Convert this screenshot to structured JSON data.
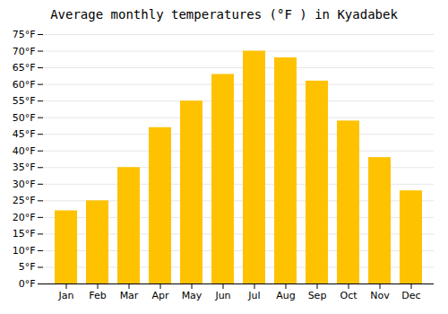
{
  "chart_data": {
    "type": "bar",
    "title": "Average monthly temperatures (°F ) in Kyadabek",
    "categories": [
      "Jan",
      "Feb",
      "Mar",
      "Apr",
      "May",
      "Jun",
      "Jul",
      "Aug",
      "Sep",
      "Oct",
      "Nov",
      "Dec"
    ],
    "values": [
      22,
      25,
      35,
      47,
      55,
      63,
      70,
      68,
      61,
      49,
      38,
      28
    ],
    "color": "#FFC200",
    "ylim": [
      0,
      75
    ],
    "yticks": [
      {
        "value": 0,
        "label": "0°F"
      },
      {
        "value": 5,
        "label": "5°F"
      },
      {
        "value": 10,
        "label": "10°F"
      },
      {
        "value": 15,
        "label": "15°F"
      },
      {
        "value": 20,
        "label": "20°F"
      },
      {
        "value": 25,
        "label": "25°F"
      },
      {
        "value": 30,
        "label": "30°F"
      },
      {
        "value": 35,
        "label": "35°F"
      },
      {
        "value": 40,
        "label": "40°F"
      },
      {
        "value": 45,
        "label": "45°F"
      },
      {
        "value": 50,
        "label": "50°F"
      },
      {
        "value": 55,
        "label": "55°F"
      },
      {
        "value": 60,
        "label": "60°F"
      },
      {
        "value": 65,
        "label": "65°F"
      },
      {
        "value": 70,
        "label": "70°F"
      },
      {
        "value": 75,
        "label": "75°F"
      }
    ],
    "grid": true
  }
}
